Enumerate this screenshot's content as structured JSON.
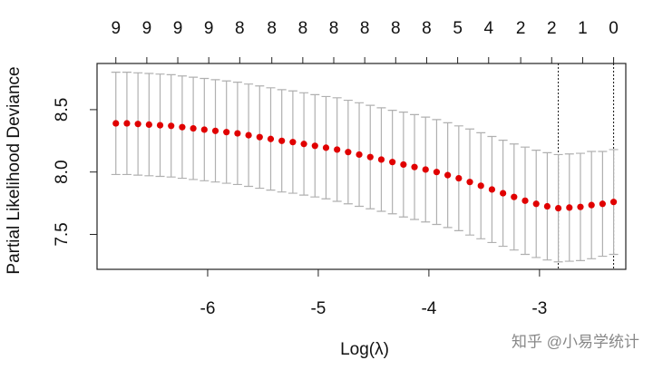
{
  "chart_data": {
    "type": "errorbar",
    "x_label": "Log(λ)",
    "y_label": "Partial Likelihood Deviance",
    "watermark": "知乎 @小易学统计",
    "x": [
      -6.83,
      -6.73,
      -6.63,
      -6.53,
      -6.43,
      -6.33,
      -6.23,
      -6.13,
      -6.03,
      -5.93,
      -5.83,
      -5.73,
      -5.63,
      -5.53,
      -5.43,
      -5.33,
      -5.23,
      -5.13,
      -5.03,
      -4.93,
      -4.83,
      -4.73,
      -4.63,
      -4.53,
      -4.43,
      -4.33,
      -4.23,
      -4.13,
      -4.03,
      -3.93,
      -3.83,
      -3.73,
      -3.63,
      -3.53,
      -3.43,
      -3.33,
      -3.23,
      -3.13,
      -3.03,
      -2.93,
      -2.83,
      -2.73,
      -2.63,
      -2.53,
      -2.43,
      -2.33
    ],
    "values": [
      8.39,
      8.39,
      8.385,
      8.38,
      8.375,
      8.37,
      8.36,
      8.35,
      8.34,
      8.33,
      8.32,
      8.31,
      8.295,
      8.28,
      8.265,
      8.25,
      8.24,
      8.225,
      8.21,
      8.195,
      8.18,
      8.16,
      8.14,
      8.12,
      8.1,
      8.08,
      8.06,
      8.04,
      8.02,
      8.0,
      7.975,
      7.95,
      7.92,
      7.89,
      7.86,
      7.83,
      7.8,
      7.77,
      7.745,
      7.725,
      7.71,
      7.715,
      7.72,
      7.735,
      7.745,
      7.76
    ],
    "errors": [
      0.41,
      0.41,
      0.41,
      0.41,
      0.41,
      0.41,
      0.41,
      0.41,
      0.41,
      0.41,
      0.41,
      0.41,
      0.41,
      0.41,
      0.41,
      0.41,
      0.41,
      0.41,
      0.41,
      0.41,
      0.415,
      0.415,
      0.415,
      0.415,
      0.415,
      0.415,
      0.42,
      0.42,
      0.42,
      0.42,
      0.42,
      0.42,
      0.425,
      0.425,
      0.425,
      0.425,
      0.425,
      0.43,
      0.43,
      0.43,
      0.43,
      0.43,
      0.43,
      0.43,
      0.42,
      0.42
    ],
    "color": "#e00000",
    "error_color": "#b0b0b0",
    "xlim": [
      -7.0,
      -2.22
    ],
    "ylim": [
      7.22,
      8.87
    ],
    "xticks": [
      -6,
      -5,
      -4,
      -3
    ],
    "yticks": [
      7.5,
      {
        "value": 8,
        "label": "8.0"
      },
      8.5
    ],
    "top_axis": {
      "x": [
        -6.83,
        -6.55,
        -6.27,
        -5.99,
        -5.71,
        -5.42,
        -5.14,
        -4.86,
        -4.58,
        -4.3,
        -4.02,
        -3.74,
        -3.46,
        -3.17,
        -2.89,
        -2.61,
        -2.33
      ],
      "counts": [
        9,
        9,
        9,
        9,
        8,
        8,
        8,
        8,
        8,
        8,
        8,
        5,
        4,
        2,
        2,
        1,
        0
      ]
    },
    "vlines": [
      -2.83,
      -2.33
    ]
  }
}
